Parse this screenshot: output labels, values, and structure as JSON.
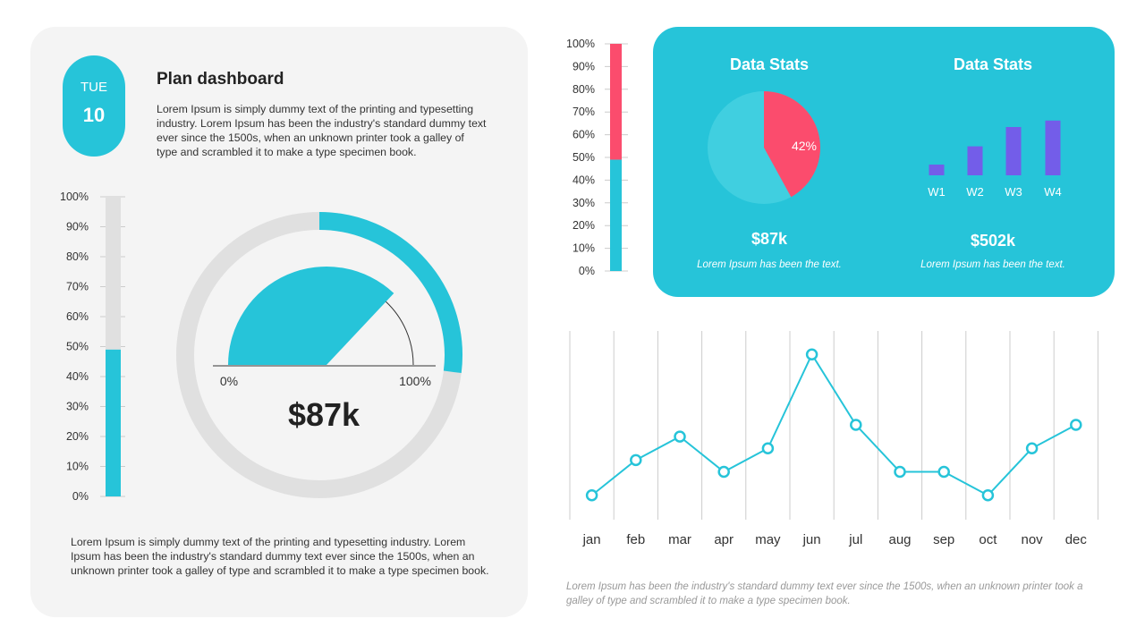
{
  "colors": {
    "accent": "#26c4d9",
    "red": "#fb4c6d",
    "purple": "#735de9",
    "track": "#e0e0e0",
    "panel": "#f4f4f4"
  },
  "date": {
    "day": "TUE",
    "num": "10"
  },
  "header": {
    "title": "Plan dashboard",
    "description": "Lorem Ipsum is simply dummy text of the printing and typesetting industry. Lorem Ipsum has been the industry's standard dummy text ever since the 1500s, when an unknown printer took a galley of type and scrambled it to make a type specimen book."
  },
  "bottom_text": "Lorem Ipsum is simply dummy text of the printing and typesetting industry. Lorem Ipsum has been the industry's standard dummy text ever since the 1500s, when an unknown printer took a galley of type and scrambled it to make a type specimen book.",
  "stats": [
    {
      "title": "Data Stats",
      "value": "$87k",
      "caption": "Lorem Ipsum has been the text."
    },
    {
      "title": "Data Stats",
      "value": "$502k",
      "caption": "Lorem Ipsum has been the text."
    }
  ],
  "footer_text": "Lorem Ipsum has been the industry's standard dummy text ever since the 1500s, when an unknown printer took a galley of type and scrambled it to make a type specimen book.",
  "chart_data": [
    {
      "type": "bar",
      "name": "left-progress",
      "ticks": [
        "0%",
        "10%",
        "20%",
        "30%",
        "40%",
        "50%",
        "60%",
        "70%",
        "80%",
        "90%",
        "100%"
      ],
      "values": [
        49
      ],
      "ylim": [
        0,
        100
      ]
    },
    {
      "type": "gauge",
      "value_label": "$87k",
      "min_label": "0%",
      "max_label": "100%",
      "gauge_percent": 74,
      "ring_percent": 27
    },
    {
      "type": "bar",
      "name": "stacked-progress",
      "ticks": [
        "0%",
        "10%",
        "20%",
        "30%",
        "40%",
        "50%",
        "60%",
        "70%",
        "80%",
        "90%",
        "100%"
      ],
      "values": [
        49,
        51
      ],
      "ylim": [
        0,
        100
      ]
    },
    {
      "type": "pie",
      "values": [
        42,
        58
      ],
      "labels": [
        "42%",
        ""
      ]
    },
    {
      "type": "bar",
      "categories": [
        "W1",
        "W2",
        "W3",
        "W4"
      ],
      "values": [
        1,
        2.7,
        4.5,
        5.1
      ]
    },
    {
      "type": "line",
      "categories": [
        "jan",
        "feb",
        "mar",
        "apr",
        "may",
        "jun",
        "jul",
        "aug",
        "sep",
        "oct",
        "nov",
        "dec"
      ],
      "values": [
        1,
        2.5,
        3.5,
        2,
        3,
        7,
        4,
        2,
        2,
        1,
        3,
        4
      ],
      "ylim": [
        0,
        8
      ],
      "grid": "vertical"
    }
  ]
}
